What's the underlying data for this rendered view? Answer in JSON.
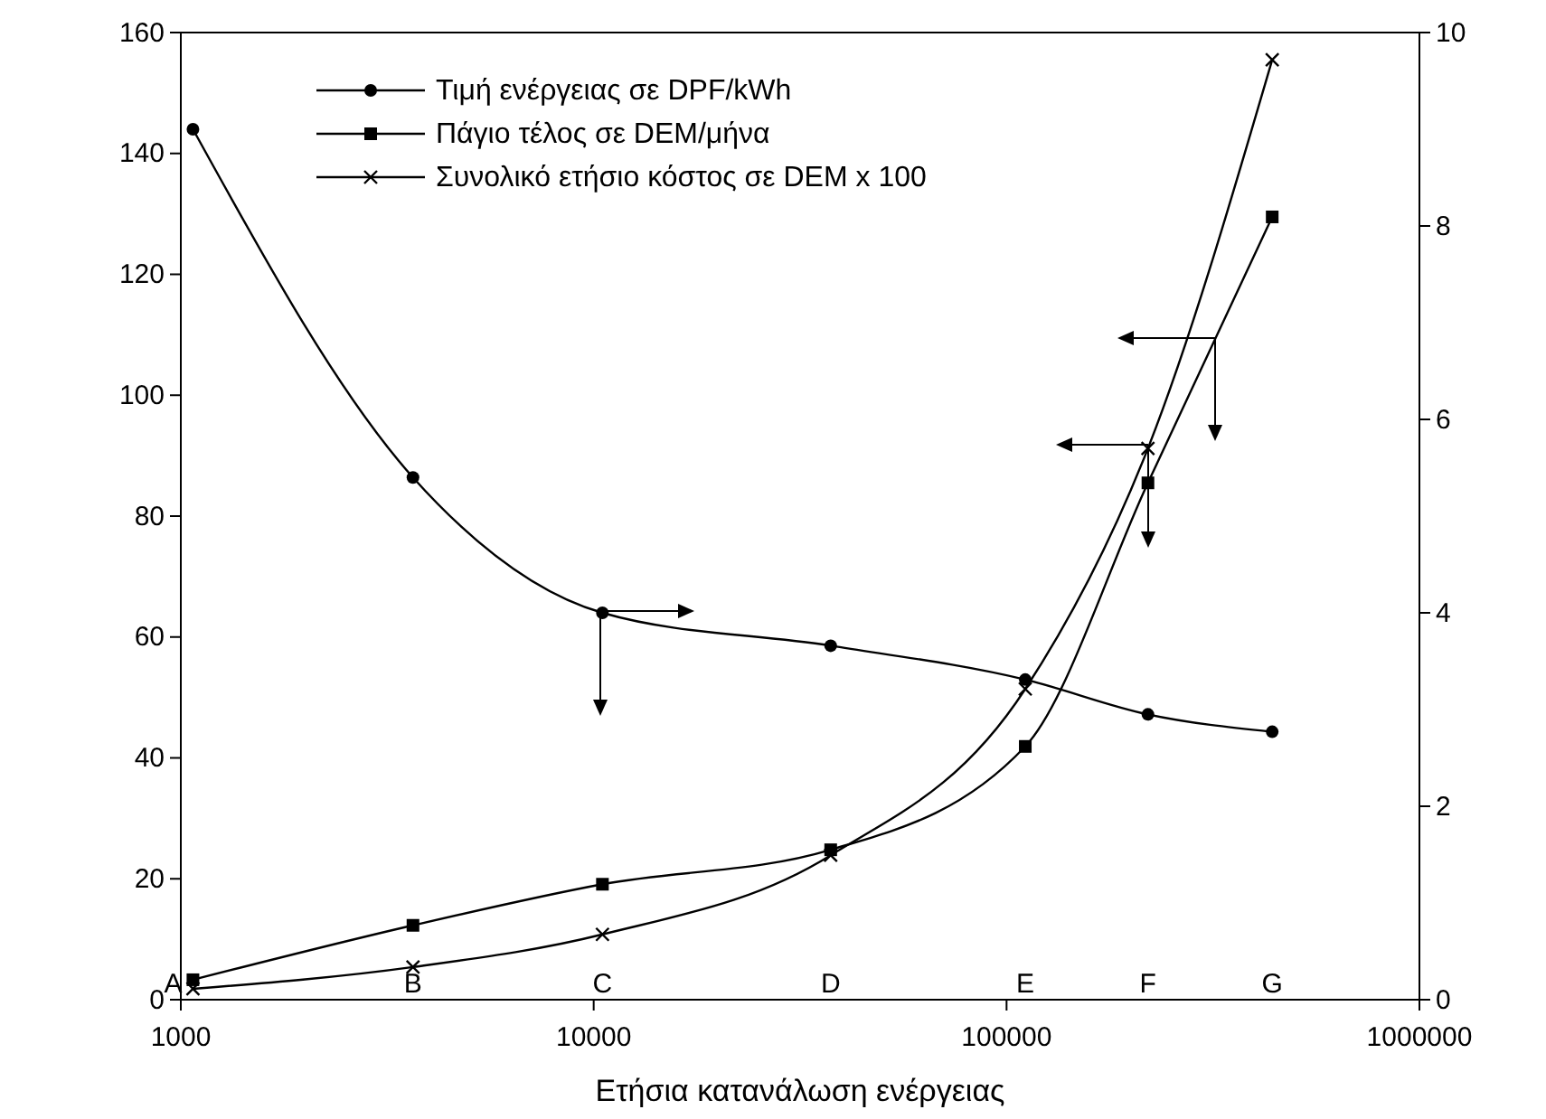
{
  "chart_data": {
    "type": "line",
    "xlabel": "Ετήσια κατανάλωση ενέργειας",
    "log": "x",
    "xlim": [
      1000,
      1000000
    ],
    "xticks": [
      1000,
      10000,
      100000,
      1000000
    ],
    "ylim": [
      0,
      160
    ],
    "yticks": [
      0,
      20,
      40,
      60,
      80,
      100,
      120,
      140,
      160
    ],
    "y2lim": [
      0,
      10
    ],
    "y2ticks": [
      0,
      2,
      4,
      6,
      8,
      10
    ],
    "grid": false,
    "legend": "top left",
    "line_style": "solid",
    "x": [
      1070,
      3650,
      10500,
      37500,
      111000,
      220000,
      440000
    ],
    "series": [
      {
        "name": "Τιμή ενέργειας σε DPF/kWh",
        "color": "#000000",
        "marker": "circle",
        "axis": "y2",
        "values": [
          9.0,
          5.4,
          4.0,
          3.66,
          3.31,
          2.95,
          2.77
        ]
      },
      {
        "name": "Πάγιο τέλος σε DEM/μήνα",
        "color": "#000000",
        "marker": "square",
        "values": [
          3.3,
          12.3,
          19.1,
          24.8,
          41.9,
          85.5,
          129.5
        ]
      },
      {
        "name": "Συνολικό ετήσιο κόστος σε DEM x 100",
        "color": "#000000",
        "marker": "cross",
        "values": [
          1.8,
          5.4,
          10.8,
          23.9,
          51.4,
          91.2,
          155.5
        ]
      }
    ],
    "annotations": [
      "A",
      "B",
      "C",
      "D",
      "E",
      "F",
      "G"
    ]
  }
}
